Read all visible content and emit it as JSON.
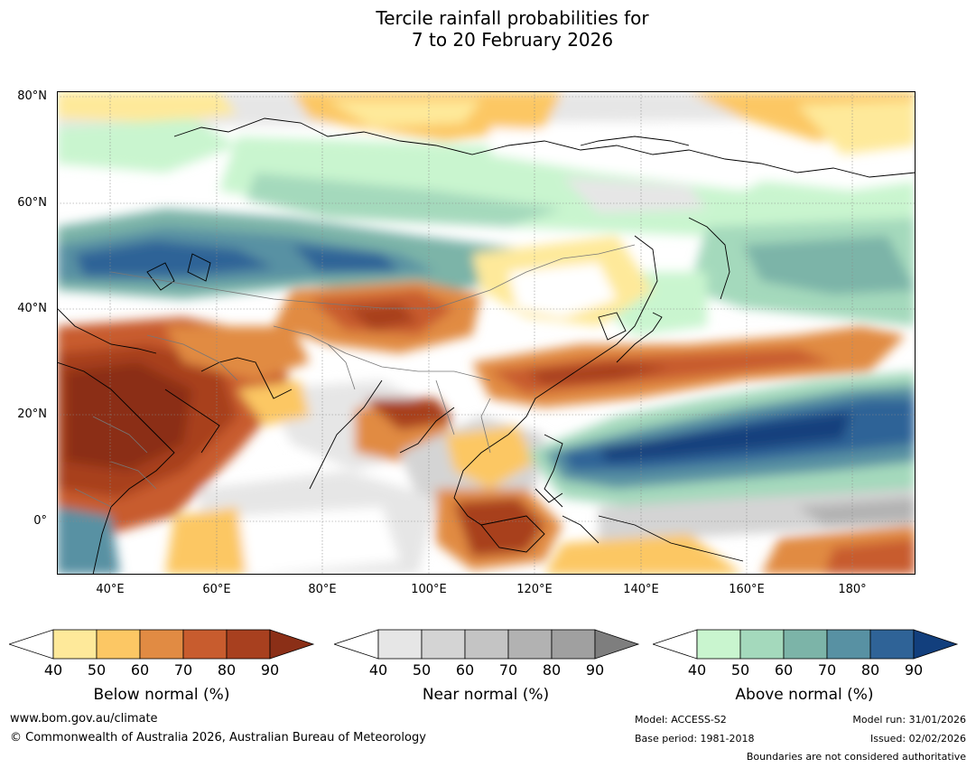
{
  "title": {
    "line1": "Tercile rainfall probabilities for",
    "line2": "7 to 20 February 2026"
  },
  "axes": {
    "lat_labels": [
      "80°N",
      "60°N",
      "40°N",
      "20°N",
      "0°"
    ],
    "lon_labels": [
      "40°E",
      "60°E",
      "80°E",
      "100°E",
      "120°E",
      "140°E",
      "160°E",
      "180°"
    ]
  },
  "legends": [
    {
      "title": "Below normal (%)",
      "ticks": [
        "40",
        "50",
        "60",
        "70",
        "80",
        "90"
      ],
      "colors": [
        "#ffffff",
        "#fee99a",
        "#fcc764",
        "#e18b43",
        "#c85c2e",
        "#a8401f",
        "#8b2f17"
      ]
    },
    {
      "title": "Near normal (%)",
      "ticks": [
        "40",
        "50",
        "60",
        "70",
        "80",
        "90"
      ],
      "colors": [
        "#ffffff",
        "#e6e6e6",
        "#d4d4d4",
        "#c4c4c4",
        "#b2b2b2",
        "#a0a0a0",
        "#7e7e7e"
      ]
    },
    {
      "title": "Above normal (%)",
      "ticks": [
        "40",
        "50",
        "60",
        "70",
        "80",
        "90"
      ],
      "colors": [
        "#ffffff",
        "#c9f5cf",
        "#a4d9bc",
        "#7cb4a8",
        "#5891a3",
        "#2f6397",
        "#123f7d"
      ]
    }
  ],
  "footer": {
    "website": "www.bom.gov.au/climate",
    "copyright": "© Commonwealth of Australia 2026, Australian Bureau of Meteorology",
    "model": "Model: ACCESS-S2",
    "base_period": "Base period: 1981-2018",
    "model_run": "Model run: 31/01/2026",
    "issued": "Issued: 02/02/2026",
    "disclaimer": "Boundaries are not considered authoritative"
  }
}
